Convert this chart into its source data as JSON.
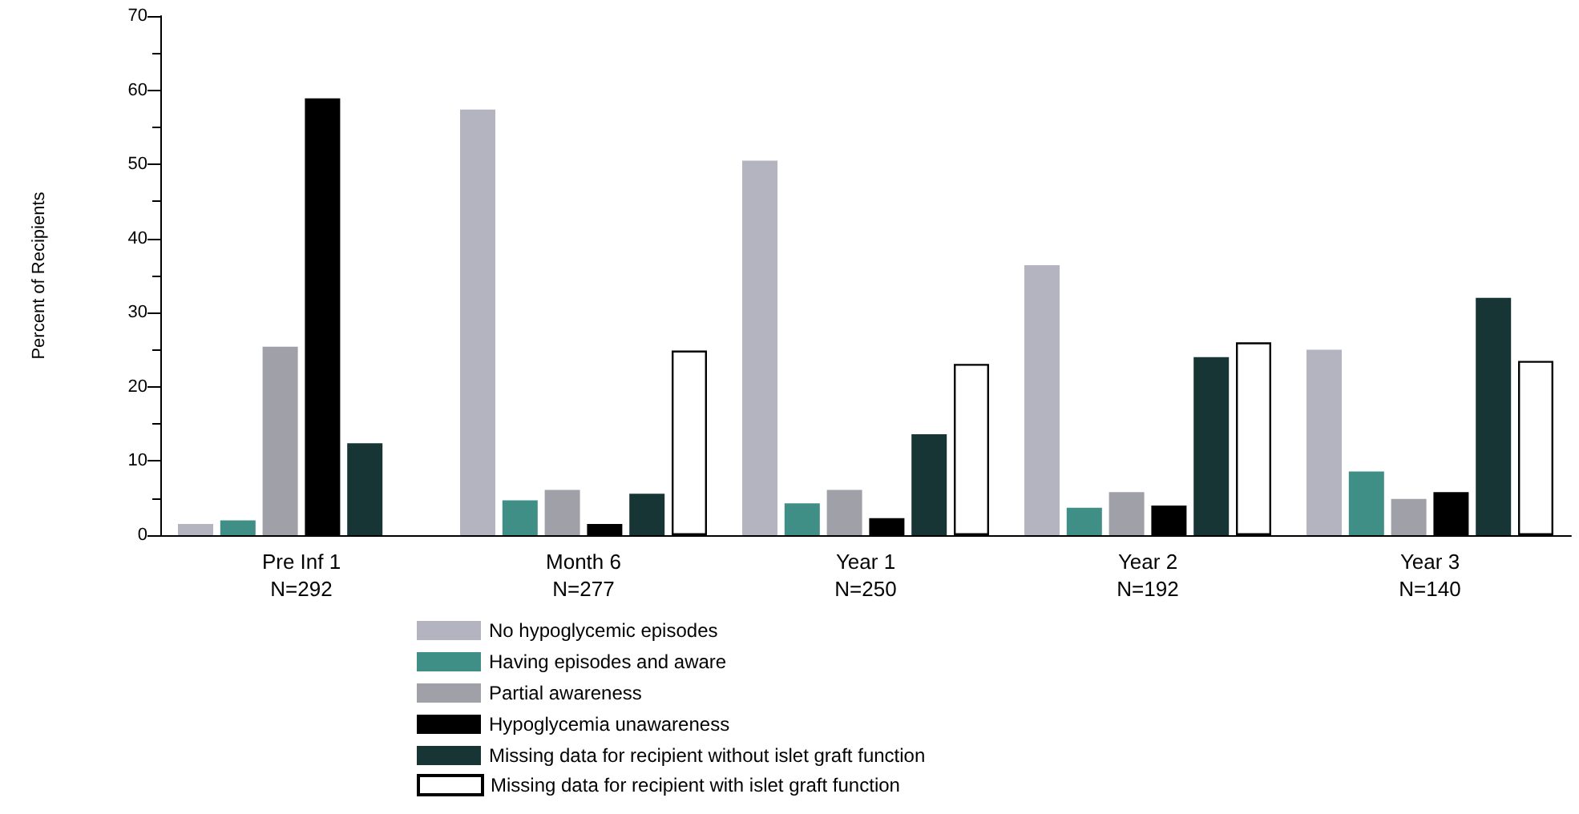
{
  "chart_data": {
    "type": "bar",
    "ylabel": "Percent of Recipients",
    "categories": [
      "Pre Inf 1\nN=292",
      "Month 6\nN=277",
      "Year 1\nN=250",
      "Year 2\nN=192",
      "Year 3\nN=140"
    ],
    "series": [
      {
        "name": "No hypoglycemic episodes",
        "color": "#b4b4c0",
        "values": [
          1.5,
          57.4,
          50.5,
          36.4,
          25.0
        ]
      },
      {
        "name": "Having episodes and aware",
        "color": "#3f8f86",
        "values": [
          2.0,
          4.7,
          4.3,
          3.7,
          8.6
        ]
      },
      {
        "name": "Partial awareness",
        "color": "#a0a0a8",
        "values": [
          25.4,
          6.1,
          6.1,
          5.8,
          4.9
        ]
      },
      {
        "name": "Hypoglycemia unawareness",
        "color": "#000000",
        "values": [
          58.9,
          1.5,
          2.3,
          4.0,
          5.8
        ]
      },
      {
        "name": "Missing data for recipient without islet graft function",
        "color": "#183535",
        "values": [
          12.4,
          5.6,
          13.6,
          24.0,
          32.0
        ]
      },
      {
        "name": "Missing data for recipient with islet graft function",
        "color": "#ffffff",
        "values": [
          null,
          24.9,
          23.1,
          26.0,
          23.5
        ]
      }
    ],
    "ylim": [
      0,
      70
    ],
    "yticks": [
      0,
      10,
      20,
      30,
      40,
      50,
      60,
      70
    ],
    "grid": false,
    "legend": "bottom"
  }
}
